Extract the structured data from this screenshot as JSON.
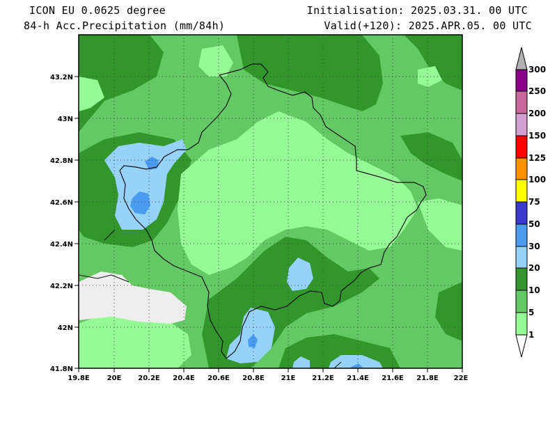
{
  "header": {
    "model": "ICON EU 0.0625 degree",
    "field": "84-h Acc.Precipitation (mm/84h)",
    "init": "Initialisation: 2025.03.31. 00 UTC",
    "valid": "Valid(+120): 2025.APR.05. 00 UTC"
  },
  "axes": {
    "lat_labels": [
      "43.2N",
      "43N",
      "42.8N",
      "42.6N",
      "42.4N",
      "42.2N",
      "42N",
      "41.8N"
    ],
    "lon_labels": [
      "19.8E",
      "20E",
      "20.2E",
      "20.4E",
      "20.6E",
      "20.8E",
      "21E",
      "21.2E",
      "21.4E",
      "21.6E",
      "21.8E",
      "22E"
    ]
  },
  "colorbar": {
    "levels": [
      "300",
      "250",
      "200",
      "150",
      "125",
      "100",
      "75",
      "50",
      "30",
      "20",
      "10",
      "5",
      "1"
    ],
    "colors": [
      "#b0b0b0",
      "#8b008b",
      "#c8689c",
      "#d2a0d2",
      "#ff0000",
      "#ff9200",
      "#ffff00",
      "#3a3ad0",
      "#4a9cf0",
      "#96d2fa",
      "#32962d",
      "#64c864",
      "#96fa96",
      "#ffffff"
    ]
  },
  "palette": {
    "none": "#eeeeee",
    "light_green": "#96fa96",
    "mid_green": "#64c864",
    "dark_green": "#32962d",
    "light_blue": "#96d2fa",
    "blue": "#4a9cf0"
  }
}
